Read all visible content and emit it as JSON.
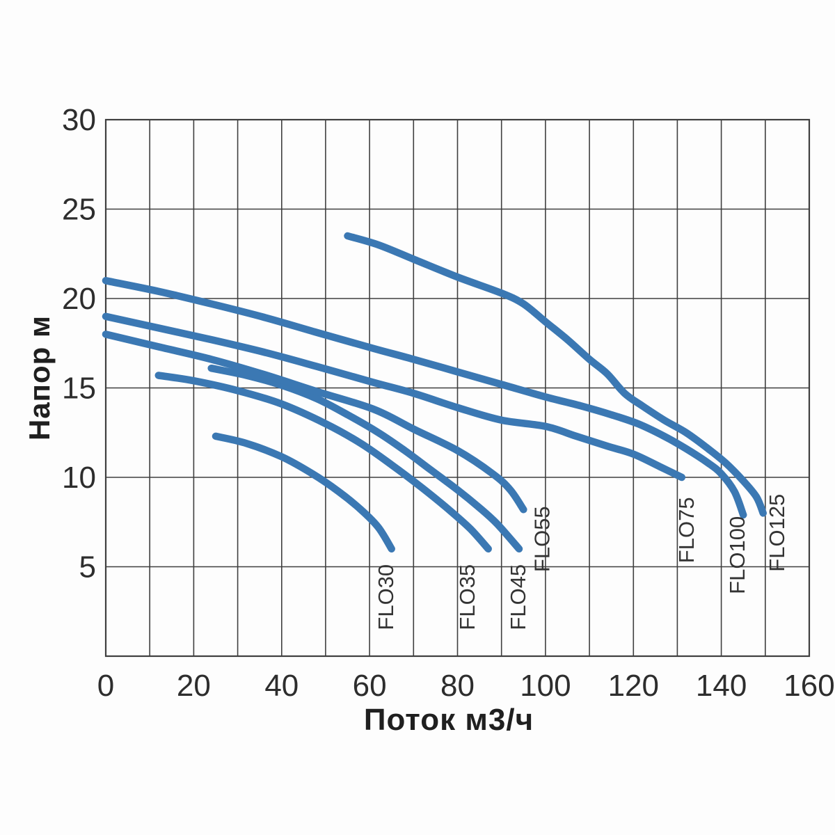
{
  "chart_data": {
    "type": "line",
    "title": "",
    "xlabel": "Поток м3/ч",
    "ylabel": "Напор м",
    "xlim": [
      0,
      160
    ],
    "ylim": [
      0,
      30
    ],
    "x_gridline_step": 10,
    "y_gridline_step": 5,
    "x_tick_labels": [
      0,
      20,
      40,
      60,
      80,
      100,
      120,
      140,
      160
    ],
    "y_tick_labels": [
      5,
      10,
      15,
      20,
      25,
      30
    ],
    "grid": true,
    "legend_position": "labels-rotated-at-curve-ends",
    "colors": {
      "curve": "#3b78b3",
      "grid": "#3f3f3f",
      "tick_text": "#2d2d2d",
      "curve_label_text": "#333333",
      "background": "#fdfdfd"
    },
    "series": [
      {
        "name": "FLO30",
        "label": "FLO30",
        "label_anchor_units": [
          65.4,
          3.3
        ],
        "points": [
          [
            25,
            12.3
          ],
          [
            32,
            11.9
          ],
          [
            40,
            11.15
          ],
          [
            47,
            10.2
          ],
          [
            53,
            9.2
          ],
          [
            58,
            8.2
          ],
          [
            62,
            7.2
          ],
          [
            65,
            6.0
          ]
        ]
      },
      {
        "name": "FLO35",
        "label": "FLO35",
        "label_anchor_units": [
          83.9,
          3.3
        ],
        "points": [
          [
            12,
            15.7
          ],
          [
            20,
            15.4
          ],
          [
            30,
            14.85
          ],
          [
            40,
            14.1
          ],
          [
            50,
            13.0
          ],
          [
            58,
            11.9
          ],
          [
            65,
            10.7
          ],
          [
            72,
            9.4
          ],
          [
            78,
            8.2
          ],
          [
            83,
            7.1
          ],
          [
            87,
            6.0
          ]
        ]
      },
      {
        "name": "FLO45",
        "label": "FLO45",
        "label_anchor_units": [
          95.4,
          3.3
        ],
        "points": [
          [
            24,
            16.1
          ],
          [
            32,
            15.7
          ],
          [
            40,
            15.15
          ],
          [
            48,
            14.4
          ],
          [
            55,
            13.5
          ],
          [
            62,
            12.5
          ],
          [
            68,
            11.5
          ],
          [
            74,
            10.4
          ],
          [
            80,
            9.3
          ],
          [
            85,
            8.3
          ],
          [
            89,
            7.4
          ],
          [
            94,
            6.0
          ]
        ]
      },
      {
        "name": "FLO55",
        "label": "FLO55",
        "label_anchor_units": [
          100.9,
          6.55
        ],
        "points": [
          [
            0,
            18.0
          ],
          [
            12,
            17.3
          ],
          [
            24,
            16.6
          ],
          [
            36,
            15.75
          ],
          [
            48,
            14.8
          ],
          [
            61,
            13.8
          ],
          [
            70,
            12.7
          ],
          [
            80,
            11.5
          ],
          [
            88,
            10.2
          ],
          [
            92,
            9.3
          ],
          [
            95,
            8.2
          ]
        ]
      },
      {
        "name": "FLO75",
        "label": "FLO75",
        "label_anchor_units": [
          133.7,
          7.05
        ],
        "points": [
          [
            0,
            19.0
          ],
          [
            12,
            18.35
          ],
          [
            24,
            17.7
          ],
          [
            36,
            17.0
          ],
          [
            48,
            16.2
          ],
          [
            61,
            15.3
          ],
          [
            70,
            14.7
          ],
          [
            80,
            13.9
          ],
          [
            90,
            13.2
          ],
          [
            100,
            12.85
          ],
          [
            107,
            12.3
          ],
          [
            114,
            11.75
          ],
          [
            120,
            11.3
          ],
          [
            126,
            10.6
          ],
          [
            131,
            10.0
          ]
        ]
      },
      {
        "name": "FLO100",
        "label": "FLO100",
        "label_anchor_units": [
          145.3,
          5.65
        ],
        "points": [
          [
            0,
            21.0
          ],
          [
            12,
            20.4
          ],
          [
            24,
            19.7
          ],
          [
            36,
            18.95
          ],
          [
            48,
            18.1
          ],
          [
            61,
            17.2
          ],
          [
            70,
            16.6
          ],
          [
            80,
            15.9
          ],
          [
            90,
            15.2
          ],
          [
            100,
            14.5
          ],
          [
            108,
            14.0
          ],
          [
            115,
            13.5
          ],
          [
            121,
            13.0
          ],
          [
            127,
            12.3
          ],
          [
            132,
            11.6
          ],
          [
            137,
            10.8
          ],
          [
            140,
            10.2
          ],
          [
            143,
            9.2
          ],
          [
            145,
            7.9
          ]
        ]
      },
      {
        "name": "FLO125",
        "label": "FLO125",
        "label_anchor_units": [
          154.3,
          6.9
        ],
        "points": [
          [
            55,
            23.5
          ],
          [
            62,
            23.0
          ],
          [
            70,
            22.2
          ],
          [
            80,
            21.2
          ],
          [
            90,
            20.3
          ],
          [
            95,
            19.7
          ],
          [
            100,
            18.7
          ],
          [
            105,
            17.7
          ],
          [
            110,
            16.6
          ],
          [
            114,
            15.8
          ],
          [
            118,
            14.7
          ],
          [
            122,
            14.0
          ],
          [
            127,
            13.2
          ],
          [
            132,
            12.5
          ],
          [
            137,
            11.6
          ],
          [
            141,
            10.8
          ],
          [
            145,
            9.8
          ],
          [
            148,
            8.9
          ],
          [
            149.5,
            8.0
          ]
        ]
      }
    ]
  }
}
